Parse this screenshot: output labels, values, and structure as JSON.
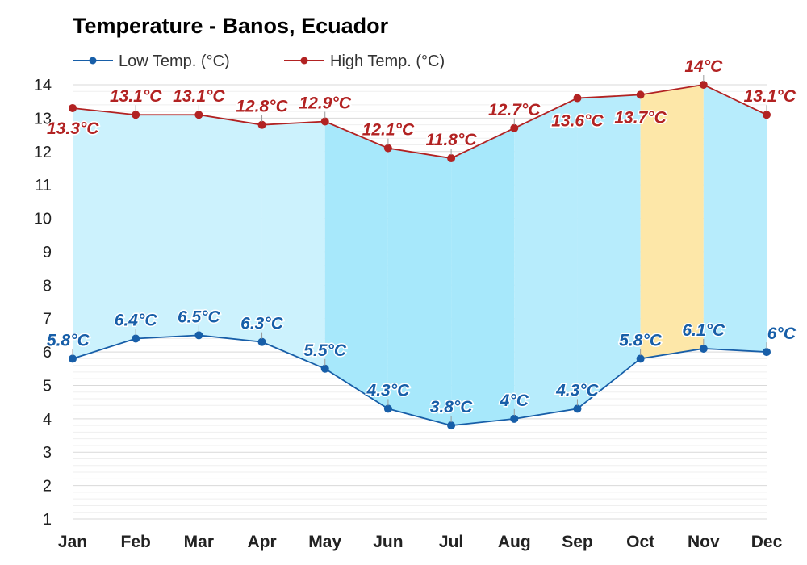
{
  "chart_data": {
    "type": "line",
    "title": "Temperature - Banos, Ecuador",
    "categories": [
      "Jan",
      "Feb",
      "Mar",
      "Apr",
      "May",
      "Jun",
      "Jul",
      "Aug",
      "Sep",
      "Oct",
      "Nov",
      "Dec"
    ],
    "series": [
      {
        "name": "Low Temp. (°C)",
        "color": "#175ea8",
        "values": [
          5.8,
          6.4,
          6.5,
          6.3,
          5.5,
          4.3,
          3.8,
          4.0,
          4.3,
          5.8,
          6.1,
          6.0
        ],
        "labels": [
          "5.8°C",
          "6.4°C",
          "6.5°C",
          "6.3°C",
          "5.5°C",
          "4.3°C",
          "3.8°C",
          "4°C",
          "4.3°C",
          "5.8°C",
          "6.1°C",
          "6°C"
        ]
      },
      {
        "name": "High Temp. (°C)",
        "color": "#b22222",
        "values": [
          13.3,
          13.1,
          13.1,
          12.8,
          12.9,
          12.1,
          11.8,
          12.7,
          13.6,
          13.7,
          14.0,
          13.1
        ],
        "labels": [
          "13.3°C",
          "13.1°C",
          "13.1°C",
          "12.8°C",
          "12.9°C",
          "12.1°C",
          "11.8°C",
          "12.7°C",
          "13.6°C",
          "13.7°C",
          "14°C",
          "13.1°C"
        ]
      }
    ],
    "yticks": [
      "1",
      "2",
      "3",
      "4",
      "5",
      "6",
      "7",
      "8",
      "9",
      "10",
      "11",
      "12",
      "13",
      "14"
    ],
    "ylim": [
      1,
      14
    ],
    "grid": true,
    "legend_position": "top-left",
    "band_colors": [
      "#ccf2fd",
      "#ccf2fd",
      "#ccf2fd",
      "#ccf2fd",
      "#a7e8fb",
      "#a7e8fb",
      "#a7e8fb",
      "#b7ecfc",
      "#b7ecfc",
      "#fde7a8",
      "#b7ecfc",
      "#b7ecfc"
    ]
  }
}
